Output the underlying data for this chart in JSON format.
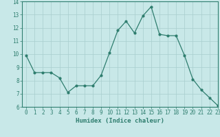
{
  "x": [
    0,
    1,
    2,
    3,
    4,
    5,
    6,
    7,
    8,
    9,
    10,
    11,
    12,
    13,
    14,
    15,
    16,
    17,
    18,
    19,
    20,
    21,
    22,
    23
  ],
  "y": [
    9.9,
    8.6,
    8.6,
    8.6,
    8.2,
    7.1,
    7.6,
    7.6,
    7.6,
    8.4,
    10.1,
    11.8,
    12.5,
    11.6,
    12.9,
    13.6,
    11.5,
    11.4,
    11.4,
    9.9,
    8.1,
    7.3,
    6.7,
    6.1
  ],
  "line_color": "#2e7d6e",
  "bg_color": "#c8e8e8",
  "grid_color": "#a8cece",
  "xlabel": "Humidex (Indice chaleur)",
  "ylim": [
    6,
    14
  ],
  "xlim": [
    -0.5,
    23
  ],
  "yticks": [
    6,
    7,
    8,
    9,
    10,
    11,
    12,
    13,
    14
  ],
  "xticks": [
    0,
    1,
    2,
    3,
    4,
    5,
    6,
    7,
    8,
    9,
    10,
    11,
    12,
    13,
    14,
    15,
    16,
    17,
    18,
    19,
    20,
    21,
    22,
    23
  ],
  "tick_color": "#2e7d6e",
  "label_fontsize": 6.5,
  "tick_fontsize": 5.5
}
